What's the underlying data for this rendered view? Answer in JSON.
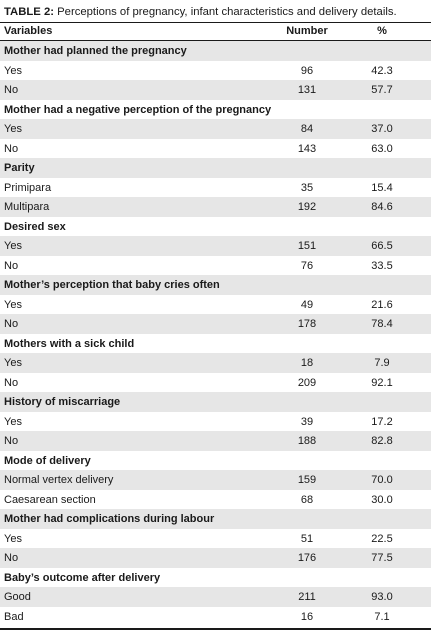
{
  "caption": {
    "label": "TABLE 2:",
    "text": " Perceptions of pregnancy, infant characteristics and delivery details."
  },
  "header": {
    "variables": "Variables",
    "number": "Number",
    "percent": "%"
  },
  "sections": [
    {
      "title": "Mother had planned the pregnancy",
      "rows": [
        {
          "label": "Yes",
          "number": "96",
          "percent": "42.3"
        },
        {
          "label": "No",
          "number": "131",
          "percent": "57.7"
        }
      ]
    },
    {
      "title": "Mother had a negative perception of the pregnancy",
      "rows": [
        {
          "label": "Yes",
          "number": "84",
          "percent": "37.0"
        },
        {
          "label": "No",
          "number": "143",
          "percent": "63.0"
        }
      ]
    },
    {
      "title": "Parity",
      "rows": [
        {
          "label": "Primipara",
          "number": "35",
          "percent": "15.4"
        },
        {
          "label": "Multipara",
          "number": "192",
          "percent": "84.6"
        }
      ]
    },
    {
      "title": "Desired sex",
      "rows": [
        {
          "label": "Yes",
          "number": "151",
          "percent": "66.5"
        },
        {
          "label": "No",
          "number": "76",
          "percent": "33.5"
        }
      ]
    },
    {
      "title": "Mother’s perception that baby cries often",
      "rows": [
        {
          "label": "Yes",
          "number": "49",
          "percent": "21.6"
        },
        {
          "label": "No",
          "number": "178",
          "percent": "78.4"
        }
      ]
    },
    {
      "title": "Mothers with a sick child",
      "rows": [
        {
          "label": "Yes",
          "number": "18",
          "percent": "7.9"
        },
        {
          "label": "No",
          "number": "209",
          "percent": "92.1"
        }
      ]
    },
    {
      "title": "History of miscarriage",
      "rows": [
        {
          "label": "Yes",
          "number": "39",
          "percent": "17.2"
        },
        {
          "label": "No",
          "number": "188",
          "percent": "82.8"
        }
      ]
    },
    {
      "title": "Mode of delivery",
      "rows": [
        {
          "label": "Normal vertex delivery",
          "number": "159",
          "percent": "70.0"
        },
        {
          "label": "Caesarean section",
          "number": "68",
          "percent": "30.0"
        }
      ]
    },
    {
      "title": "Mother had complications during labour",
      "rows": [
        {
          "label": "Yes",
          "number": "51",
          "percent": "22.5"
        },
        {
          "label": "No",
          "number": "176",
          "percent": "77.5"
        }
      ]
    },
    {
      "title": "Baby’s outcome after delivery",
      "rows": [
        {
          "label": "Good",
          "number": "211",
          "percent": "93.0"
        },
        {
          "label": "Bad",
          "number": "16",
          "percent": "7.1"
        }
      ]
    }
  ]
}
